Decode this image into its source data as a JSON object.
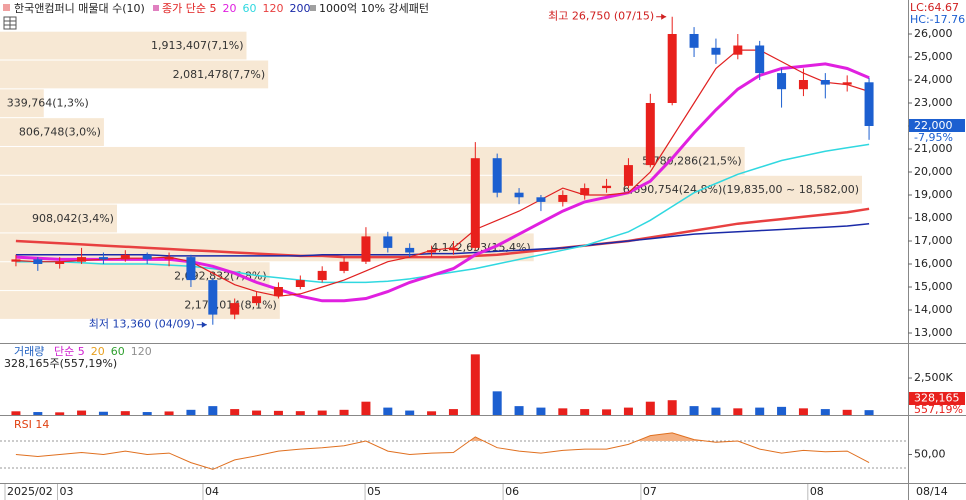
{
  "chart_data": [
    {
      "type": "candlestick",
      "title": "한국앤컴퍼니 매물대 수(10)",
      "note": "1000억 10% 강세패턴",
      "lc_label": "LC:64.67",
      "hc_label": "HC:-17.76",
      "last_label": "22,000",
      "change_label": "-7,95%",
      "high_annotation": "최고 26,750 (07/15)",
      "low_annotation": "최저 13,360 (04/09)",
      "up_color": "#e8201c",
      "down_color": "#1c5fd0",
      "open": [
        16100,
        16200,
        16000,
        16100,
        16300,
        16200,
        16400,
        16200,
        16300,
        15300,
        13800,
        14300,
        14600,
        15000,
        15300,
        15700,
        16100,
        17200,
        16700,
        16500,
        16600,
        16700,
        20600,
        19100,
        18900,
        18700,
        19000,
        19300,
        19400,
        20300,
        23000,
        26000,
        25400,
        25100,
        25500,
        24300,
        23600,
        24000,
        23800,
        23900
      ],
      "high": [
        16400,
        16300,
        16300,
        16700,
        16500,
        16600,
        16500,
        16500,
        16400,
        15400,
        14500,
        14800,
        15200,
        15500,
        15900,
        16300,
        17600,
        17400,
        16900,
        16800,
        17000,
        21300,
        20800,
        19300,
        19000,
        19200,
        19500,
        19700,
        20600,
        23400,
        26750,
        26300,
        25800,
        26000,
        25700,
        24500,
        24500,
        24300,
        24200,
        24100
      ],
      "low": [
        15900,
        15700,
        15800,
        16000,
        16000,
        16100,
        16000,
        15900,
        15000,
        13360,
        13600,
        14200,
        14500,
        14900,
        15200,
        15600,
        16000,
        16500,
        16300,
        16300,
        16400,
        16600,
        18900,
        18600,
        18300,
        18500,
        18800,
        19100,
        19300,
        20200,
        22900,
        25000,
        24700,
        24900,
        24000,
        22800,
        23300,
        23200,
        23500,
        21400
      ],
      "close": [
        16200,
        16000,
        16100,
        16300,
        16200,
        16400,
        16200,
        16300,
        15300,
        13800,
        14300,
        14600,
        15000,
        15300,
        15700,
        16100,
        17200,
        16700,
        16500,
        16600,
        16700,
        20600,
        19100,
        18900,
        18700,
        19000,
        19300,
        19400,
        20300,
        23000,
        26000,
        25400,
        25100,
        25500,
        24300,
        23600,
        24000,
        23800,
        23900,
        22000
      ],
      "series": [
        {
          "name": "종가 단순 5",
          "color": "#e02020",
          "values": [
            16150,
            16100,
            16100,
            16150,
            16200,
            16250,
            16250,
            16300,
            16100,
            15600,
            15100,
            14800,
            14600,
            14700,
            15000,
            15300,
            15700,
            16100,
            16300,
            16600,
            16700,
            17500,
            17900,
            18300,
            18800,
            19300,
            19000,
            19000,
            19100,
            20000,
            21500,
            23000,
            24500,
            25300,
            25300,
            24800,
            24300,
            23900,
            23800,
            23500
          ]
        },
        {
          "name": "20",
          "color": "#e020e0",
          "values": [
            16300,
            16250,
            16200,
            16200,
            16200,
            16200,
            16200,
            16200,
            16100,
            15900,
            15600,
            15200,
            14900,
            14600,
            14400,
            14400,
            14500,
            14800,
            15200,
            15500,
            15800,
            16400,
            16800,
            17300,
            17800,
            18300,
            18700,
            18900,
            19100,
            19600,
            20600,
            21700,
            22700,
            23600,
            24200,
            24500,
            24600,
            24700,
            24500,
            24100
          ]
        },
        {
          "name": "60",
          "color": "#30d8e0",
          "values": [
            16100,
            16100,
            16100,
            16050,
            16000,
            16000,
            16000,
            15950,
            15900,
            15800,
            15650,
            15500,
            15400,
            15300,
            15200,
            15200,
            15200,
            15250,
            15350,
            15500,
            15650,
            15800,
            16000,
            16200,
            16400,
            16600,
            16800,
            17100,
            17400,
            17900,
            18500,
            19100,
            19500,
            19900,
            20200,
            20500,
            20700,
            20900,
            21050,
            21200
          ]
        },
        {
          "name": "120",
          "color": "#e84040",
          "values": [
            17000,
            16950,
            16900,
            16850,
            16800,
            16750,
            16700,
            16650,
            16600,
            16550,
            16500,
            16450,
            16400,
            16350,
            16350,
            16300,
            16300,
            16300,
            16300,
            16300,
            16300,
            16350,
            16400,
            16500,
            16600,
            16700,
            16800,
            16900,
            17000,
            17150,
            17300,
            17450,
            17600,
            17750,
            17850,
            17950,
            18050,
            18150,
            18250,
            18400
          ]
        },
        {
          "name": "200",
          "color": "#1a2aa8",
          "values": [
            16400,
            16400,
            16400,
            16400,
            16400,
            16400,
            16400,
            16350,
            16350,
            16350,
            16350,
            16350,
            16350,
            16350,
            16400,
            16400,
            16400,
            16400,
            16400,
            16450,
            16450,
            16500,
            16550,
            16600,
            16650,
            16700,
            16800,
            16900,
            17000,
            17100,
            17200,
            17300,
            17350,
            17400,
            17450,
            17500,
            17550,
            17600,
            17650,
            17750
          ]
        }
      ],
      "volume_profile_color": "#f7e8d4",
      "volume_profile": [
        {
          "label": "1,913,407(7,1%)",
          "value": 1913407,
          "low": 24847,
          "high": 26100
        },
        {
          "label": "2,081,478(7,7%)",
          "value": 2081478,
          "low": 23594,
          "high": 24847
        },
        {
          "label": "339,764(1,3%)",
          "value": 339764,
          "low": 22341,
          "high": 23594
        },
        {
          "label": "806,748(3,0%)",
          "value": 806748,
          "low": 21088,
          "high": 22341
        },
        {
          "label": "5,780,286(21,5%)",
          "value": 5780286,
          "low": 19835,
          "high": 21088
        },
        {
          "label": "6,690,754(24,8%)(19,835,00 ~ 18,582,00)",
          "value": 6690754,
          "low": 18582,
          "high": 19835
        },
        {
          "label": "908,042(3,4%)",
          "value": 908042,
          "low": 17329,
          "high": 18582
        },
        {
          "label": "4,142,653(15,4%)",
          "value": 4142653,
          "low": 16076,
          "high": 17329
        },
        {
          "label": "2,092,832(7,8%)",
          "value": 2092832,
          "low": 14823,
          "high": 16076
        },
        {
          "label": "2,172,014(8,1%)",
          "value": 2172014,
          "low": 13570,
          "high": 14823
        }
      ],
      "ylim": [
        12565,
        27478
      ],
      "yticks": [
        {
          "value": 13000,
          "label": "13,000"
        },
        {
          "value": 14000,
          "label": "14,000"
        },
        {
          "value": 15000,
          "label": "15,000"
        },
        {
          "value": 16000,
          "label": "16,000"
        },
        {
          "value": 17000,
          "label": "17,000"
        },
        {
          "value": 18000,
          "label": "18,000"
        },
        {
          "value": 19000,
          "label": "19,000"
        },
        {
          "value": 20000,
          "label": "20,000"
        },
        {
          "value": 21000,
          "label": "21,000"
        },
        {
          "value": 22000,
          "label": "22,000"
        },
        {
          "value": 23000,
          "label": "23,000"
        },
        {
          "value": 24000,
          "label": "24,000"
        },
        {
          "value": 25000,
          "label": "25,000"
        },
        {
          "value": 26000,
          "label": "26,000"
        }
      ]
    },
    {
      "type": "bar",
      "title": "거래량",
      "subtitle": "328,165주(557,19%)",
      "legend": [
        {
          "name": "단순 5",
          "color": "#d020d0"
        },
        {
          "name": "20",
          "color": "#e8a020"
        },
        {
          "name": "60",
          "color": "#30a030"
        },
        {
          "name": "120",
          "color": "#909090"
        }
      ],
      "last_label": "328,165",
      "change_label": "557,19%",
      "values": [
        250000,
        200000,
        180000,
        300000,
        220000,
        260000,
        200000,
        240000,
        350000,
        600000,
        400000,
        300000,
        280000,
        260000,
        300000,
        350000,
        900000,
        500000,
        300000,
        250000,
        400000,
        4100000,
        1600000,
        600000,
        500000,
        450000,
        400000,
        380000,
        500000,
        900000,
        1000000,
        600000,
        500000,
        450000,
        500000,
        550000,
        450000,
        400000,
        350000,
        328165
      ],
      "ylim": [
        0,
        4800000
      ],
      "yticks": [
        {
          "value": 2500000,
          "label": "2,500K"
        }
      ]
    },
    {
      "type": "line",
      "title": "RSI 14",
      "color": "#e07020",
      "fill_color": "#f4b183",
      "values": [
        50,
        47,
        50,
        53,
        50,
        55,
        50,
        52,
        38,
        28,
        42,
        48,
        55,
        58,
        60,
        63,
        70,
        55,
        50,
        52,
        53,
        76,
        60,
        55,
        52,
        56,
        58,
        58,
        65,
        78,
        82,
        72,
        68,
        70,
        58,
        52,
        56,
        54,
        55,
        38
      ],
      "levels": [
        30,
        70
      ],
      "ylim": [
        7.8,
        107
      ],
      "yticks": [
        {
          "value": 50,
          "label": "50,00"
        }
      ],
      "xlim": [
        -0.5,
        39.5
      ],
      "xticks": [
        {
          "value": -0.5,
          "label": "2025/02"
        },
        {
          "value": 1.9,
          "label": "03"
        },
        {
          "value": 8.55,
          "label": "04"
        },
        {
          "value": 15.96,
          "label": "05"
        },
        {
          "value": 22.27,
          "label": "06"
        },
        {
          "value": 28.57,
          "label": "07"
        },
        {
          "value": 36.2,
          "label": "08"
        }
      ],
      "current_date": "08/14"
    }
  ]
}
